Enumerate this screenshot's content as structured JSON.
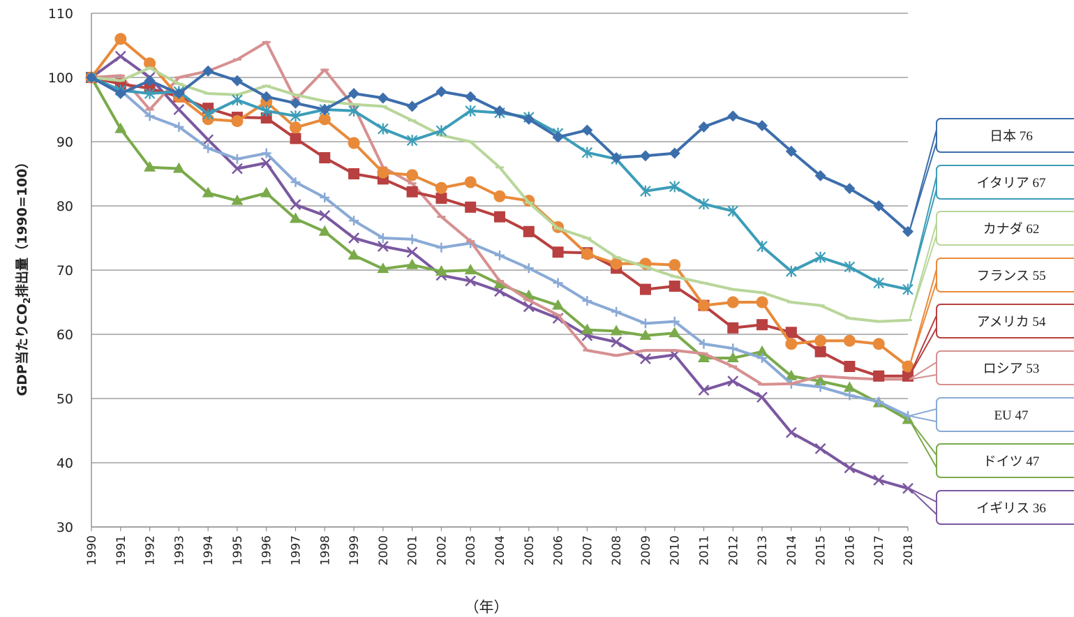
{
  "chart_data": {
    "type": "line",
    "title": "",
    "xlabel": "（年）",
    "ylabel": "GDP当たりCO₂排出量（1990=100）",
    "ylabel_main": "GDP当たりCO",
    "ylabel_sub": "2",
    "ylabel_rest": "排出量（1990=100）",
    "ylim": [
      30,
      110
    ],
    "yticks": [
      "30",
      "40",
      "50",
      "60",
      "70",
      "80",
      "90",
      "100",
      "110"
    ],
    "grid": true,
    "legend": "right callouts",
    "x": [
      "1990",
      "1991",
      "1992",
      "1993",
      "1994",
      "1995",
      "1996",
      "1997",
      "1998",
      "1999",
      "2000",
      "2001",
      "2002",
      "2003",
      "2004",
      "2005",
      "2006",
      "2007",
      "2008",
      "2009",
      "2010",
      "2011",
      "2012",
      "2013",
      "2014",
      "2015",
      "2016",
      "2017",
      "2018"
    ],
    "series": [
      {
        "name": "日本",
        "label": "日本 76",
        "color": "#3c6eac",
        "marker": "diamond",
        "values": [
          100,
          97.5,
          99.5,
          97.5,
          101,
          99.5,
          97,
          96,
          95,
          97.5,
          96.8,
          95.5,
          97.8,
          97,
          94.8,
          93.5,
          90.7,
          91.8,
          87.5,
          87.8,
          88.2,
          92.3,
          94,
          92.5,
          88.5,
          84.7,
          82.7,
          80,
          76
        ]
      },
      {
        "name": "イタリア",
        "label": "イタリア 67",
        "color": "#3c9db8",
        "marker": "star",
        "values": [
          100,
          98,
          97.5,
          97.8,
          94.3,
          96.5,
          94.8,
          94,
          95,
          94.8,
          92,
          90.2,
          91.7,
          94.8,
          94.5,
          93.8,
          91.3,
          88.3,
          87.3,
          82.3,
          83,
          80.3,
          79.2,
          73.7,
          69.8,
          72,
          70.5,
          68,
          67
        ]
      },
      {
        "name": "カナダ",
        "label": "カナダ 62",
        "color": "#b8d69a",
        "marker": "dash",
        "values": [
          100,
          99.5,
          101.5,
          99,
          97.5,
          97.3,
          98.7,
          97.3,
          96.3,
          95.8,
          95.5,
          93.3,
          91,
          90,
          86,
          80.5,
          76.5,
          75,
          72,
          70.5,
          69,
          68,
          67,
          66.5,
          65,
          64.5,
          62.5,
          62,
          62.2
        ]
      },
      {
        "name": "フランス",
        "label": "フランス 55",
        "color": "#e88a3a",
        "marker": "circle",
        "values": [
          100,
          106,
          102.2,
          97,
          93.5,
          93.2,
          96.2,
          92.2,
          93.5,
          89.8,
          85.2,
          84.8,
          82.8,
          83.7,
          81.5,
          80.8,
          76.7,
          72.5,
          71,
          71,
          70.8,
          64.5,
          65,
          65,
          58.5,
          59,
          59,
          58.5,
          55
        ]
      },
      {
        "name": "アメリカ",
        "label": "アメリカ 54",
        "color": "#b84040",
        "marker": "square",
        "values": [
          100,
          99,
          98.3,
          97,
          95.2,
          93.8,
          93.7,
          90.5,
          87.5,
          85,
          84.2,
          82.2,
          81.2,
          79.8,
          78.3,
          76,
          72.8,
          72.7,
          70.3,
          67,
          67.5,
          64.5,
          61,
          61.5,
          60.3,
          57.3,
          55,
          53.5,
          53.5
        ]
      },
      {
        "name": "ロシア",
        "label": "ロシア 53",
        "color": "#d69090",
        "marker": "dash",
        "values": [
          100,
          100.3,
          95,
          100,
          101,
          102.8,
          105.5,
          96.5,
          101.2,
          95.5,
          86,
          83.5,
          78.3,
          74.5,
          68.3,
          65.3,
          63,
          57.5,
          56.7,
          57.5,
          57.5,
          57,
          55,
          52.2,
          52.3,
          53.5,
          53.2,
          53,
          53
        ]
      },
      {
        "name": "EU",
        "label": "EU 47",
        "color": "#8aaad6",
        "marker": "plus",
        "values": [
          100,
          98,
          94,
          92.3,
          89,
          87.3,
          88.2,
          83.7,
          81.3,
          77.7,
          75,
          74.8,
          73.5,
          74.2,
          72.3,
          70.3,
          68,
          65.2,
          63.5,
          61.7,
          62,
          58.5,
          57.8,
          56.3,
          52.3,
          51.8,
          50.5,
          49.5,
          47.3
        ]
      },
      {
        "name": "ドイツ",
        "label": "ドイツ 47",
        "color": "#7aaa4a",
        "marker": "triangle",
        "values": [
          100,
          92,
          86,
          85.8,
          82,
          80.8,
          82,
          78,
          76,
          72.3,
          70.2,
          70.8,
          69.8,
          70,
          67.8,
          66,
          64.5,
          60.7,
          60.5,
          59.8,
          60.2,
          56.3,
          56.3,
          57.3,
          53.5,
          52.7,
          51.7,
          49.3,
          46.7
        ]
      },
      {
        "name": "イギリス",
        "label": "イギリス 36",
        "color": "#7b58a0",
        "marker": "x",
        "values": [
          100,
          103.3,
          100,
          95,
          90.3,
          85.8,
          86.7,
          80.2,
          78.5,
          75,
          73.7,
          72.8,
          69.2,
          68.3,
          66.7,
          64.3,
          62.5,
          59.8,
          58.8,
          56.2,
          56.8,
          51.3,
          52.7,
          50.2,
          44.7,
          42.2,
          39.2,
          37.3,
          36
        ]
      }
    ]
  }
}
